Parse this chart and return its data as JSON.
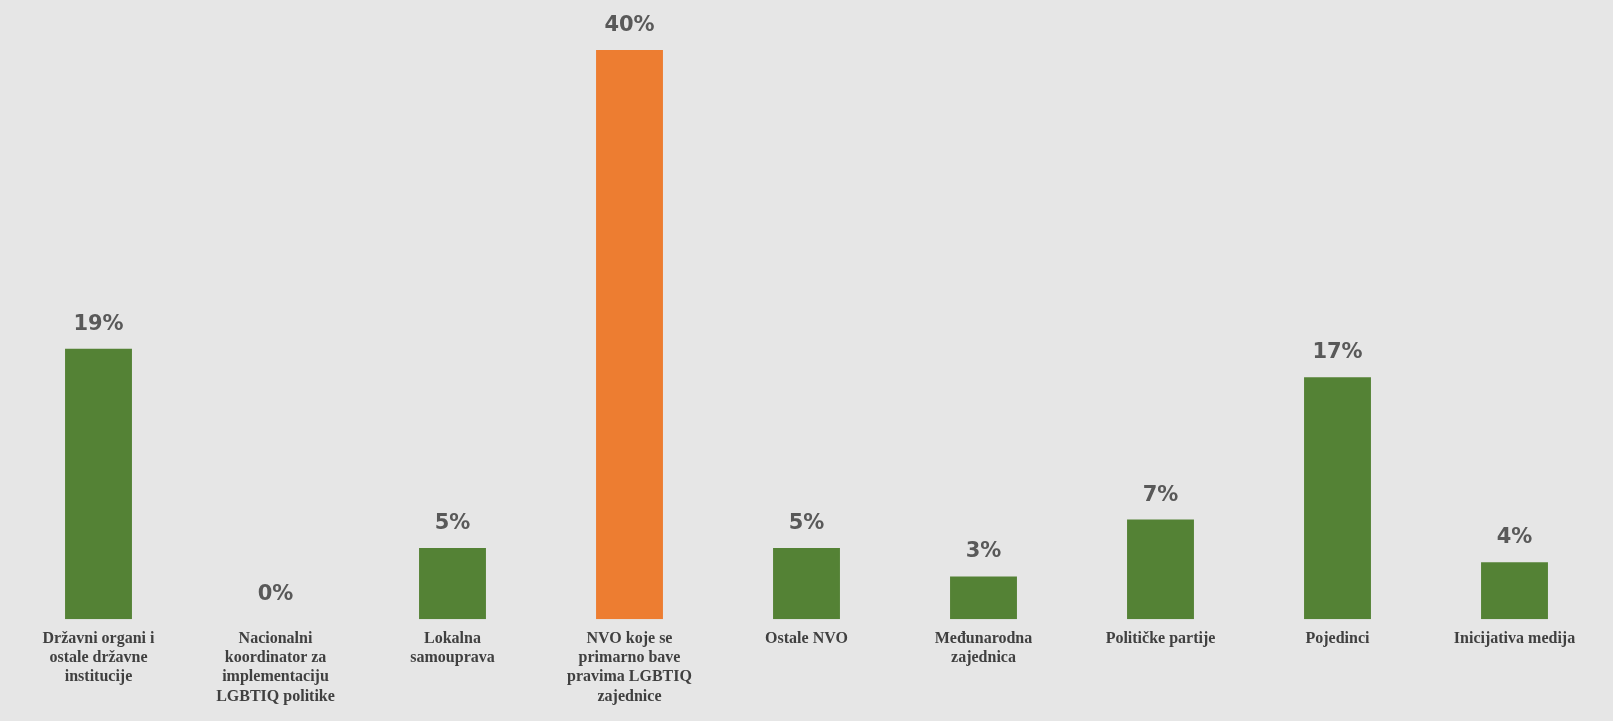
{
  "chart_data": {
    "type": "bar",
    "categories": [
      "Državni organi i ostale državne institucije",
      "Nacionalni koordinator za implementaciju LGBTIQ politike",
      "Lokalna samouprava",
      "NVO koje se primarno bave pravima LGBTIQ zajednice",
      "Ostale NVO",
      "Međunarodna zajednica",
      "Političke partije",
      "Pojedinci",
      "Inicijativa medija"
    ],
    "values": [
      19,
      0,
      5,
      40,
      5,
      3,
      7,
      17,
      4
    ],
    "value_labels": [
      "19%",
      "0%",
      "5%",
      "40%",
      "5%",
      "3%",
      "7%",
      "17%",
      "4%"
    ],
    "colors": [
      "#548235",
      "#548235",
      "#548235",
      "#ed7d31",
      "#548235",
      "#548235",
      "#548235",
      "#548235",
      "#548235"
    ],
    "grid": false,
    "legend": false,
    "tick_labels": "x"
  }
}
